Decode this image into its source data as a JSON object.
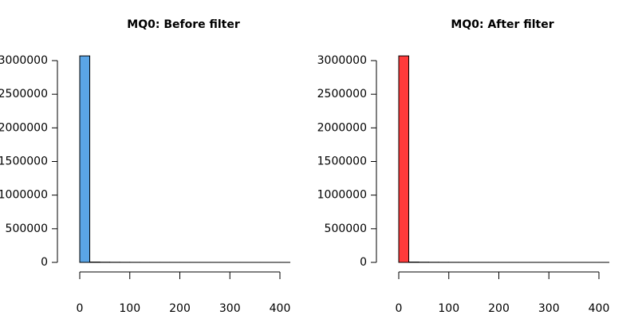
{
  "chart_data": [
    {
      "type": "histogram",
      "title": "MQ0: Before filter",
      "color": "#5aa5e6",
      "bins": [
        0,
        20,
        40,
        60,
        80,
        100,
        120,
        140,
        160,
        180,
        200,
        220,
        240,
        260,
        280,
        300,
        320,
        340,
        360,
        380,
        400,
        420
      ],
      "values": [
        3070000,
        5000,
        3000,
        2000,
        1500,
        1000,
        800,
        600,
        500,
        400,
        300,
        300,
        200,
        200,
        200,
        100,
        100,
        100,
        100,
        100,
        100
      ],
      "xlim": [
        0,
        400
      ],
      "xticks": [
        0,
        100,
        200,
        300,
        400
      ],
      "ylim": [
        0,
        3000000
      ],
      "yticks": [
        0,
        500000,
        1000000,
        1500000,
        2000000,
        2500000,
        3000000
      ]
    },
    {
      "type": "histogram",
      "title": "MQ0: After filter",
      "color": "#ff3b3b",
      "bins": [
        0,
        20,
        40,
        60,
        80,
        100,
        120,
        140,
        160,
        180,
        200,
        220,
        240,
        260,
        280,
        300,
        320,
        340,
        360,
        380,
        400,
        420
      ],
      "values": [
        3070000,
        5000,
        3000,
        2000,
        1500,
        1000,
        800,
        600,
        500,
        400,
        300,
        300,
        200,
        200,
        200,
        100,
        100,
        100,
        100,
        100,
        100
      ],
      "xlim": [
        0,
        400
      ],
      "xticks": [
        0,
        100,
        200,
        300,
        400
      ],
      "ylim": [
        0,
        3000000
      ],
      "yticks": [
        0,
        500000,
        1000000,
        1500000,
        2000000,
        2500000,
        3000000
      ]
    }
  ]
}
